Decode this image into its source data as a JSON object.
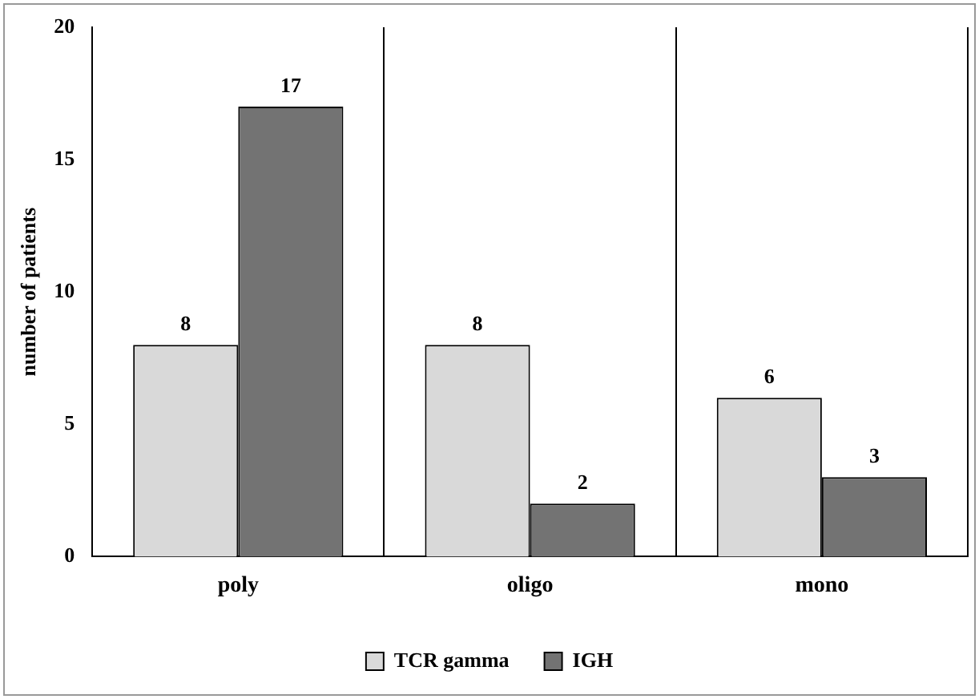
{
  "chart_data": {
    "type": "bar",
    "ylabel": "number of patients",
    "categories": [
      "poly",
      "oligo",
      "mono"
    ],
    "series": [
      {
        "name": "TCR gamma",
        "color": "#d9d9d9",
        "values": [
          8,
          8,
          6
        ]
      },
      {
        "name": "IGH",
        "color": "#737373",
        "values": [
          17,
          2,
          3
        ]
      }
    ],
    "ylim": [
      0,
      20
    ],
    "yticks": [
      0,
      5,
      10,
      15,
      20
    ],
    "grid": "x",
    "legend": "bottom",
    "data_labels": true
  }
}
